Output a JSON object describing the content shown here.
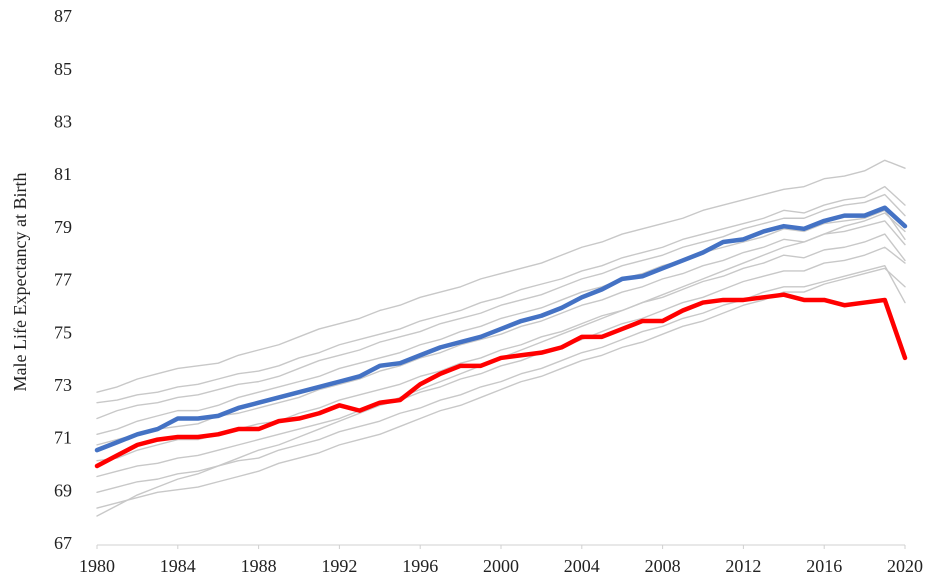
{
  "chart_data": {
    "type": "line",
    "y_label": "Male Life Expectancy at Birth",
    "x": [
      1980,
      1981,
      1982,
      1983,
      1984,
      1985,
      1986,
      1987,
      1988,
      1989,
      1990,
      1991,
      1992,
      1993,
      1994,
      1995,
      1996,
      1997,
      1998,
      1999,
      2000,
      2001,
      2002,
      2003,
      2004,
      2005,
      2006,
      2007,
      2008,
      2009,
      2010,
      2011,
      2012,
      2013,
      2014,
      2015,
      2016,
      2017,
      2018,
      2019,
      2020
    ],
    "xlim": [
      1980,
      2020
    ],
    "xticks": [
      1980,
      1984,
      1988,
      1992,
      1996,
      2000,
      2004,
      2008,
      2012,
      2016,
      2020
    ],
    "ylim": [
      67,
      87
    ],
    "yticks": [
      67,
      69,
      71,
      73,
      75,
      77,
      79,
      81,
      83,
      85,
      87
    ],
    "grid": false,
    "series": [
      {
        "color": "#c8c8c8",
        "values": [
          72.8,
          73.0,
          73.3,
          73.5,
          73.7,
          73.8,
          73.9,
          74.2,
          74.4,
          74.6,
          74.9,
          75.2,
          75.4,
          75.6,
          75.9,
          76.1,
          76.4,
          76.6,
          76.8,
          77.1,
          77.3,
          77.5,
          77.7,
          78.0,
          78.3,
          78.5,
          78.8,
          79.0,
          79.2,
          79.4,
          79.7,
          79.9,
          80.1,
          80.3,
          80.5,
          80.6,
          80.9,
          81.0,
          81.2,
          81.6,
          81.3
        ]
      },
      {
        "color": "#c8c8c8",
        "values": [
          72.4,
          72.5,
          72.7,
          72.8,
          73.0,
          73.1,
          73.3,
          73.5,
          73.6,
          73.8,
          74.1,
          74.3,
          74.6,
          74.8,
          75.0,
          75.2,
          75.5,
          75.7,
          75.9,
          76.2,
          76.4,
          76.7,
          76.9,
          77.1,
          77.4,
          77.6,
          77.9,
          78.1,
          78.3,
          78.6,
          78.8,
          79.0,
          79.2,
          79.4,
          79.7,
          79.6,
          79.9,
          80.1,
          80.2,
          80.6,
          79.9
        ]
      },
      {
        "color": "#c8c8c8",
        "values": [
          71.8,
          72.1,
          72.3,
          72.4,
          72.6,
          72.7,
          72.9,
          73.1,
          73.2,
          73.4,
          73.7,
          74.0,
          74.2,
          74.4,
          74.7,
          74.9,
          75.1,
          75.4,
          75.6,
          75.8,
          76.1,
          76.3,
          76.5,
          76.8,
          77.1,
          77.3,
          77.6,
          77.8,
          78.0,
          78.3,
          78.5,
          78.7,
          79.0,
          79.2,
          79.4,
          79.4,
          79.7,
          79.9,
          80.0,
          80.3,
          79.5
        ]
      },
      {
        "color": "#c8c8c8",
        "values": [
          71.2,
          71.4,
          71.7,
          71.9,
          72.1,
          72.1,
          72.3,
          72.6,
          72.8,
          73.0,
          73.2,
          73.4,
          73.7,
          73.9,
          74.1,
          74.3,
          74.6,
          74.8,
          75.1,
          75.3,
          75.6,
          75.8,
          76.0,
          76.3,
          76.6,
          76.8,
          77.1,
          77.3,
          77.6,
          77.8,
          78.1,
          78.3,
          78.5,
          78.7,
          79.0,
          78.9,
          79.2,
          79.3,
          79.4,
          79.7,
          78.6
        ]
      },
      {
        "color": "#c8c8c8",
        "values": [
          70.8,
          71.0,
          71.2,
          71.4,
          71.5,
          71.6,
          71.9,
          72.0,
          72.2,
          72.4,
          72.6,
          72.9,
          73.1,
          73.3,
          73.6,
          73.8,
          74.1,
          74.3,
          74.6,
          74.8,
          75.0,
          75.3,
          75.5,
          75.8,
          76.1,
          76.3,
          76.6,
          76.8,
          77.1,
          77.3,
          77.6,
          77.8,
          78.1,
          78.3,
          78.6,
          78.5,
          78.8,
          78.9,
          79.1,
          79.3,
          78.4
        ]
      },
      {
        "color": "#c8c8c8",
        "values": [
          70.2,
          70.3,
          70.6,
          70.8,
          71.0,
          71.0,
          71.2,
          71.4,
          71.6,
          71.7,
          72.0,
          72.2,
          72.5,
          72.7,
          72.9,
          73.1,
          73.4,
          73.6,
          73.9,
          74.1,
          74.4,
          74.6,
          74.9,
          75.1,
          75.4,
          75.7,
          75.9,
          76.2,
          76.4,
          76.7,
          77.0,
          77.2,
          77.5,
          77.7,
          78.0,
          77.9,
          78.2,
          78.3,
          78.5,
          78.8,
          77.8
        ]
      },
      {
        "color": "#c8c8c8",
        "values": [
          69.6,
          69.8,
          70.0,
          70.1,
          70.3,
          70.4,
          70.6,
          70.8,
          71.0,
          71.2,
          71.4,
          71.6,
          71.8,
          72.1,
          72.3,
          72.5,
          72.8,
          73.0,
          73.3,
          73.5,
          73.8,
          74.0,
          74.3,
          74.5,
          74.8,
          75.1,
          75.4,
          75.6,
          75.9,
          76.2,
          76.4,
          76.7,
          77.0,
          77.2,
          77.4,
          77.4,
          77.7,
          77.8,
          78.0,
          78.3,
          77.7
        ]
      },
      {
        "color": "#c8c8c8",
        "values": [
          69.0,
          69.2,
          69.4,
          69.5,
          69.7,
          69.8,
          70.0,
          70.2,
          70.3,
          70.6,
          70.8,
          71.0,
          71.3,
          71.5,
          71.7,
          72.0,
          72.2,
          72.5,
          72.7,
          73.0,
          73.2,
          73.5,
          73.7,
          74.0,
          74.3,
          74.5,
          74.8,
          75.1,
          75.3,
          75.6,
          75.8,
          76.1,
          76.3,
          76.6,
          76.8,
          76.8,
          77.0,
          77.2,
          77.4,
          77.6,
          76.2
        ]
      },
      {
        "color": "#c8c8c8",
        "values": [
          68.4,
          68.6,
          68.8,
          69.0,
          69.1,
          69.2,
          69.4,
          69.6,
          69.8,
          70.1,
          70.3,
          70.5,
          70.8,
          71.0,
          71.2,
          71.5,
          71.8,
          72.1,
          72.3,
          72.6,
          72.9,
          73.2,
          73.4,
          73.7,
          74.0,
          74.2,
          74.5,
          74.7,
          75.0,
          75.3,
          75.5,
          75.8,
          76.1,
          76.3,
          76.6,
          76.6,
          76.9,
          77.1,
          77.3,
          77.5,
          76.8
        ]
      },
      {
        "color": "#c8c8c8",
        "values": [
          68.1,
          68.5,
          68.9,
          69.2,
          69.5,
          69.7,
          70.0,
          70.3,
          70.6,
          70.8,
          71.1,
          71.4,
          71.7,
          72.0,
          72.3,
          72.6,
          72.9,
          73.2,
          73.5,
          73.8,
          74.1,
          74.4,
          74.7,
          75.0,
          75.3,
          75.6,
          75.9,
          76.2,
          76.5,
          76.8,
          77.1,
          77.4,
          77.7,
          78.0,
          78.3,
          78.5,
          78.8,
          79.1,
          79.3,
          79.6,
          78.9
        ]
      },
      {
        "color": "#4472c4",
        "values": [
          70.6,
          70.9,
          71.2,
          71.4,
          71.8,
          71.8,
          71.9,
          72.2,
          72.4,
          72.6,
          72.8,
          73.0,
          73.2,
          73.4,
          73.8,
          73.9,
          74.2,
          74.5,
          74.7,
          74.9,
          75.2,
          75.5,
          75.7,
          76.0,
          76.4,
          76.7,
          77.1,
          77.2,
          77.5,
          77.8,
          78.1,
          78.5,
          78.6,
          78.9,
          79.1,
          79.0,
          79.3,
          79.5,
          79.5,
          79.8,
          79.1
        ]
      },
      {
        "color": "#ff0000",
        "values": [
          70.0,
          70.4,
          70.8,
          71.0,
          71.1,
          71.1,
          71.2,
          71.4,
          71.4,
          71.7,
          71.8,
          72.0,
          72.3,
          72.1,
          72.4,
          72.5,
          73.1,
          73.5,
          73.8,
          73.8,
          74.1,
          74.2,
          74.3,
          74.5,
          74.9,
          74.9,
          75.2,
          75.5,
          75.5,
          75.9,
          76.2,
          76.3,
          76.3,
          76.4,
          76.5,
          76.3,
          76.3,
          76.1,
          76.2,
          76.3,
          74.1
        ]
      }
    ]
  }
}
